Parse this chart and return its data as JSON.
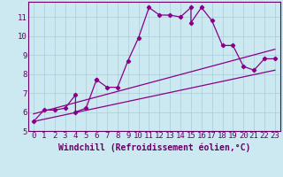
{
  "title": "",
  "xlabel": "Windchill (Refroidissement éolien,°C)",
  "ylabel": "",
  "background_color": "#cce8f0",
  "line_color": "#880088",
  "xlim": [
    -0.5,
    23.5
  ],
  "ylim": [
    5,
    11.8
  ],
  "yticks": [
    5,
    6,
    7,
    8,
    9,
    10,
    11
  ],
  "xticks": [
    0,
    1,
    2,
    3,
    4,
    5,
    6,
    7,
    8,
    9,
    10,
    11,
    12,
    13,
    14,
    15,
    16,
    17,
    18,
    19,
    20,
    21,
    22,
    23
  ],
  "curve1_x": [
    0,
    1,
    2,
    3,
    4,
    4,
    5,
    6,
    6,
    7,
    8,
    9,
    10,
    11,
    12,
    13,
    14,
    15,
    15,
    16,
    17,
    18,
    19,
    20,
    21,
    22,
    23
  ],
  "curve1_y": [
    5.5,
    6.1,
    6.1,
    6.2,
    6.9,
    6.0,
    6.2,
    7.7,
    7.7,
    7.3,
    7.3,
    8.7,
    9.9,
    11.5,
    11.1,
    11.1,
    11.0,
    11.5,
    10.7,
    11.5,
    10.8,
    9.5,
    9.5,
    8.4,
    8.2,
    8.8,
    8.8
  ],
  "curve2_x": [
    0,
    23
  ],
  "curve2_y": [
    5.9,
    9.3
  ],
  "curve3_x": [
    0,
    23
  ],
  "curve3_y": [
    5.5,
    8.2
  ],
  "grid_color": "#aaccd8",
  "grid_minor_color": "#bbdde6",
  "font_color": "#660066",
  "tick_fontsize": 6.5,
  "label_fontsize": 7.0
}
